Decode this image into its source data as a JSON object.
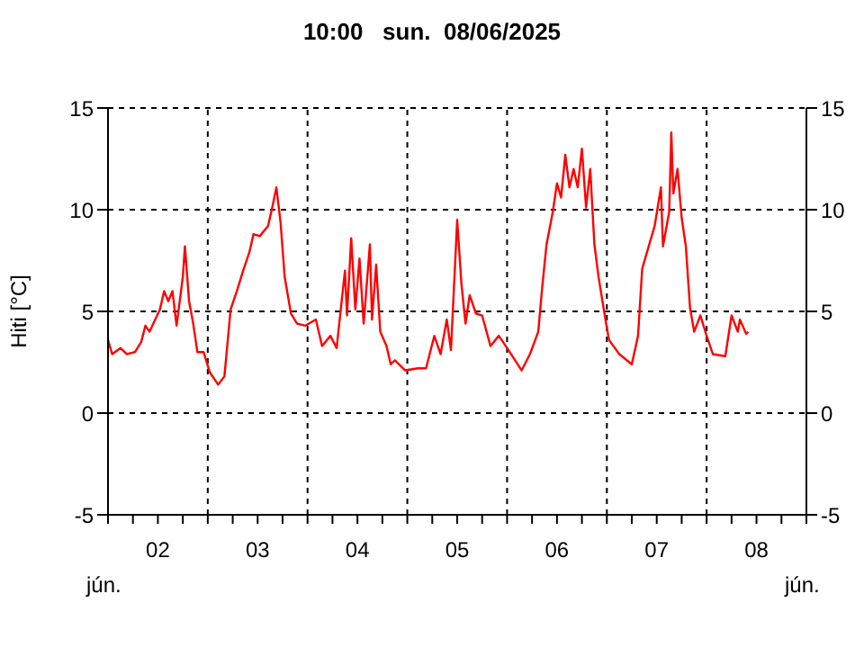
{
  "chart_data": {
    "type": "line",
    "title": "10:00   sun.  08/06/2025",
    "ylabel": "Hiti [°C]",
    "annotations": [
      "jún.",
      "jún."
    ],
    "x": [
      "2025-06-02T00:00",
      "2025-06-02T01:00",
      "2025-06-02T03:00",
      "2025-06-02T04:30",
      "2025-06-02T06:30",
      "2025-06-02T08:00",
      "2025-06-02T09:00",
      "2025-06-02T10:00",
      "2025-06-02T12:30",
      "2025-06-02T13:30",
      "2025-06-02T14:30",
      "2025-06-02T15:30",
      "2025-06-02T16:30",
      "2025-06-02T18:00",
      "2025-06-02T18:30",
      "2025-06-02T19:30",
      "2025-06-02T20:30",
      "2025-06-02T21:30",
      "2025-06-02T23:00",
      "2025-06-03T00:30",
      "2025-06-03T02:30",
      "2025-06-03T04:00",
      "2025-06-03T05:30",
      "2025-06-03T07:00",
      "2025-06-03T08:30",
      "2025-06-03T10:00",
      "2025-06-03T11:00",
      "2025-06-03T12:30",
      "2025-06-03T14:30",
      "2025-06-03T15:30",
      "2025-06-03T16:30",
      "2025-06-03T17:30",
      "2025-06-03T18:30",
      "2025-06-03T20:00",
      "2025-06-03T21:30",
      "2025-06-03T23:30",
      "2025-06-04T02:00",
      "2025-06-04T03:30",
      "2025-06-04T05:30",
      "2025-06-04T07:00",
      "2025-06-04T08:00",
      "2025-06-04T09:00",
      "2025-06-04T09:30",
      "2025-06-04T10:30",
      "2025-06-04T11:30",
      "2025-06-04T12:30",
      "2025-06-04T13:30",
      "2025-06-04T15:00",
      "2025-06-04T15:30",
      "2025-06-04T16:30",
      "2025-06-04T17:30",
      "2025-06-04T19:00",
      "2025-06-04T20:00",
      "2025-06-04T21:00",
      "2025-06-04T23:30",
      "2025-06-05T02:30",
      "2025-06-05T04:30",
      "2025-06-05T06:30",
      "2025-06-05T08:00",
      "2025-06-05T09:30",
      "2025-06-05T10:30",
      "2025-06-05T12:00",
      "2025-06-05T13:00",
      "2025-06-05T14:00",
      "2025-06-05T15:00",
      "2025-06-05T16:30",
      "2025-06-05T18:00",
      "2025-06-05T20:00",
      "2025-06-05T22:00",
      "2025-06-06T00:00",
      "2025-06-06T03:30",
      "2025-06-06T05:30",
      "2025-06-06T07:30",
      "2025-06-06T08:30",
      "2025-06-06T09:30",
      "2025-06-06T11:00",
      "2025-06-06T12:00",
      "2025-06-06T13:00",
      "2025-06-06T14:00",
      "2025-06-06T15:00",
      "2025-06-06T16:00",
      "2025-06-06T17:00",
      "2025-06-06T18:00",
      "2025-06-06T19:00",
      "2025-06-06T20:00",
      "2025-06-06T21:00",
      "2025-06-06T22:00",
      "2025-06-06T23:30",
      "2025-06-07T00:30",
      "2025-06-07T03:00",
      "2025-06-07T06:00",
      "2025-06-07T07:30",
      "2025-06-07T08:30",
      "2025-06-07T10:30",
      "2025-06-07T11:30",
      "2025-06-07T13:00",
      "2025-06-07T13:30",
      "2025-06-07T15:00",
      "2025-06-07T15:30",
      "2025-06-07T16:00",
      "2025-06-07T17:00",
      "2025-06-07T18:00",
      "2025-06-07T19:00",
      "2025-06-07T20:00",
      "2025-06-07T21:00",
      "2025-06-07T22:30",
      "2025-06-08T00:00",
      "2025-06-08T01:30",
      "2025-06-08T04:30",
      "2025-06-08T06:00",
      "2025-06-08T07:30",
      "2025-06-08T08:00",
      "2025-06-08T09:30",
      "2025-06-08T10:00"
    ],
    "series": [
      {
        "color": "#ff0000",
        "values": [
          3.6,
          2.9,
          3.2,
          2.9,
          3.0,
          3.5,
          4.3,
          4.0,
          5.1,
          6.0,
          5.5,
          6.0,
          4.3,
          6.7,
          8.2,
          5.5,
          4.4,
          3.0,
          3.0,
          2.0,
          1.4,
          1.8,
          5.1,
          6.0,
          7.0,
          7.9,
          8.8,
          8.7,
          9.2,
          10.1,
          11.1,
          9.4,
          6.7,
          4.9,
          4.4,
          4.3,
          4.6,
          3.3,
          3.8,
          3.2,
          5.1,
          7.0,
          4.8,
          8.6,
          5.1,
          7.6,
          4.4,
          8.3,
          4.6,
          7.3,
          4.0,
          3.3,
          2.4,
          2.6,
          2.1,
          2.2,
          2.2,
          3.8,
          2.9,
          4.6,
          3.1,
          9.5,
          6.4,
          4.4,
          5.8,
          4.9,
          4.8,
          3.3,
          3.8,
          3.2,
          2.1,
          2.9,
          4.0,
          6.3,
          8.3,
          9.9,
          11.3,
          10.6,
          12.7,
          11.1,
          12.0,
          11.1,
          13.0,
          10.1,
          12.0,
          8.3,
          6.7,
          4.8,
          3.6,
          2.9,
          2.4,
          3.8,
          7.1,
          8.5,
          9.2,
          11.1,
          8.2,
          9.9,
          13.8,
          10.8,
          12.0,
          9.6,
          8.2,
          5.2,
          4.0,
          4.8,
          3.8,
          2.9,
          2.8,
          4.8,
          4.0,
          4.6,
          3.9,
          4.0
        ]
      }
    ],
    "xlim": [
      "2025-06-02T00:00",
      "2025-06-09T00:00"
    ],
    "xticks": [
      {
        "value": "2025-06-02T00:00",
        "label": null
      },
      {
        "value": "2025-06-02T06:00",
        "label": null
      },
      {
        "value": "2025-06-02T12:00",
        "label": "02"
      },
      {
        "value": "2025-06-02T18:00",
        "label": null
      },
      {
        "value": "2025-06-03T00:00",
        "label": null
      },
      {
        "value": "2025-06-03T06:00",
        "label": null
      },
      {
        "value": "2025-06-03T12:00",
        "label": "03"
      },
      {
        "value": "2025-06-03T18:00",
        "label": null
      },
      {
        "value": "2025-06-04T00:00",
        "label": null
      },
      {
        "value": "2025-06-04T06:00",
        "label": null
      },
      {
        "value": "2025-06-04T12:00",
        "label": "04"
      },
      {
        "value": "2025-06-04T18:00",
        "label": null
      },
      {
        "value": "2025-06-05T00:00",
        "label": null
      },
      {
        "value": "2025-06-05T06:00",
        "label": null
      },
      {
        "value": "2025-06-05T12:00",
        "label": "05"
      },
      {
        "value": "2025-06-05T18:00",
        "label": null
      },
      {
        "value": "2025-06-06T00:00",
        "label": null
      },
      {
        "value": "2025-06-06T06:00",
        "label": null
      },
      {
        "value": "2025-06-06T12:00",
        "label": "06"
      },
      {
        "value": "2025-06-06T18:00",
        "label": null
      },
      {
        "value": "2025-06-07T00:00",
        "label": null
      },
      {
        "value": "2025-06-07T06:00",
        "label": null
      },
      {
        "value": "2025-06-07T12:00",
        "label": "07"
      },
      {
        "value": "2025-06-07T18:00",
        "label": null
      },
      {
        "value": "2025-06-08T00:00",
        "label": null
      },
      {
        "value": "2025-06-08T06:00",
        "label": null
      },
      {
        "value": "2025-06-08T12:00",
        "label": "08"
      },
      {
        "value": "2025-06-08T18:00",
        "label": null
      },
      {
        "value": "2025-06-09T00:00",
        "label": null
      }
    ],
    "ylim": [
      -5,
      15
    ],
    "yticks": [
      -5,
      0,
      5,
      10,
      15
    ],
    "y2lim": [
      -5,
      15
    ],
    "y2ticks": [
      -5,
      0,
      5,
      10,
      15
    ],
    "grid": "y",
    "marker": "none",
    "line_style": "solid",
    "legend": false,
    "ref_lines": [
      {
        "axis": "x",
        "value": "2025-06-03T00:00",
        "color": "#000000",
        "line_style": "dotted"
      },
      {
        "axis": "x",
        "value": "2025-06-04T00:00",
        "color": "#000000",
        "line_style": "dotted"
      },
      {
        "axis": "x",
        "value": "2025-06-05T00:00",
        "color": "#000000",
        "line_style": "dotted"
      },
      {
        "axis": "x",
        "value": "2025-06-06T00:00",
        "color": "#000000",
        "line_style": "dotted"
      },
      {
        "axis": "x",
        "value": "2025-06-07T00:00",
        "color": "#000000",
        "line_style": "dotted"
      },
      {
        "axis": "x",
        "value": "2025-06-08T00:00",
        "color": "#000000",
        "line_style": "dotted"
      }
    ]
  }
}
